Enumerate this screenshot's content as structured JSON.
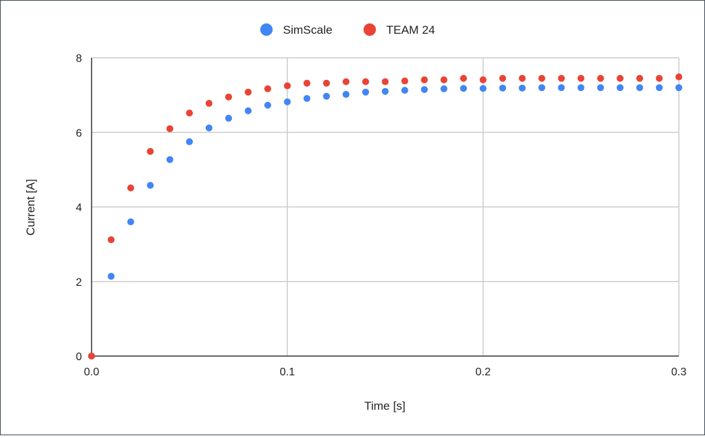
{
  "chart_data": {
    "type": "scatter",
    "title": "",
    "xlabel": "Time [s]",
    "ylabel": "Current [A]",
    "xlim": [
      0,
      0.3
    ],
    "ylim": [
      0,
      8
    ],
    "xticks": [
      "0.0",
      "0.1",
      "0.2",
      "0.3"
    ],
    "xtick_values": [
      0,
      0.1,
      0.2,
      0.3
    ],
    "yticks": [
      "0",
      "2",
      "4",
      "6",
      "8"
    ],
    "ytick_values": [
      0,
      2,
      4,
      6,
      8
    ],
    "grid": true,
    "legend_position": "top-center",
    "x": [
      0,
      0.01,
      0.02,
      0.03,
      0.04,
      0.05,
      0.06,
      0.07,
      0.08,
      0.09,
      0.1,
      0.11,
      0.12,
      0.13,
      0.14,
      0.15,
      0.16,
      0.17,
      0.18,
      0.19,
      0.2,
      0.21,
      0.22,
      0.23,
      0.24,
      0.25,
      0.26,
      0.27,
      0.28,
      0.29,
      0.3
    ],
    "series": [
      {
        "name": "SimScale",
        "color": "#4285f4",
        "values": [
          0,
          2.14,
          3.6,
          4.58,
          5.27,
          5.75,
          6.12,
          6.38,
          6.58,
          6.73,
          6.82,
          6.91,
          6.97,
          7.02,
          7.08,
          7.1,
          7.13,
          7.15,
          7.17,
          7.18,
          7.18,
          7.19,
          7.19,
          7.2,
          7.2,
          7.2,
          7.2,
          7.2,
          7.2,
          7.2,
          7.2
        ]
      },
      {
        "name": "TEAM 24",
        "color": "#ea4335",
        "values": [
          0,
          3.12,
          4.51,
          5.49,
          6.1,
          6.52,
          6.78,
          6.95,
          7.08,
          7.17,
          7.25,
          7.32,
          7.32,
          7.36,
          7.36,
          7.36,
          7.38,
          7.41,
          7.41,
          7.45,
          7.41,
          7.45,
          7.45,
          7.45,
          7.45,
          7.45,
          7.45,
          7.45,
          7.45,
          7.45,
          7.49
        ]
      }
    ]
  }
}
